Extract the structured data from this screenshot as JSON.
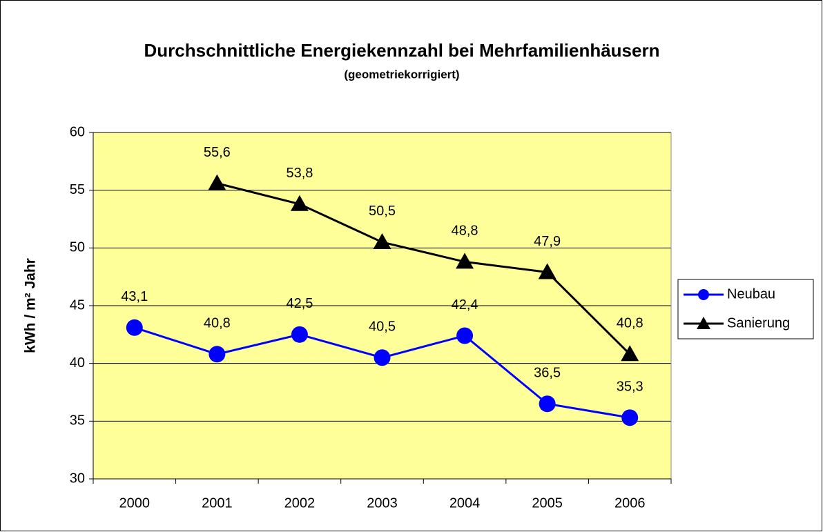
{
  "chart_data": {
    "type": "line",
    "title": "Durchschnittliche Energiekennzahl bei Mehrfamilienhäusern",
    "subtitle": "(geometriekorrigiert)",
    "y_label": "kWh / m² Jahr",
    "categories": [
      "2000",
      "2001",
      "2002",
      "2003",
      "2004",
      "2005",
      "2006"
    ],
    "series": [
      {
        "name": "Neubau",
        "color": "#0000ff",
        "marker": "circle",
        "values": [
          43.1,
          40.8,
          42.5,
          40.5,
          42.4,
          36.5,
          35.3
        ],
        "value_labels": [
          "43,1",
          "40,8",
          "42,5",
          "40,5",
          "42,4",
          "36,5",
          "35,3"
        ]
      },
      {
        "name": "Sanierung",
        "color": "#000000",
        "marker": "triangle",
        "values": [
          null,
          55.6,
          53.8,
          50.5,
          48.8,
          47.9,
          40.8
        ],
        "value_labels": [
          null,
          "55,6",
          "53,8",
          "50,5",
          "48,8",
          "47,9",
          "40,8"
        ]
      }
    ],
    "ylim": [
      30,
      60
    ],
    "yticks": [
      30,
      35,
      40,
      45,
      50,
      55,
      60
    ],
    "grid": true,
    "legend": "right",
    "plot_background": "#ffff99"
  }
}
